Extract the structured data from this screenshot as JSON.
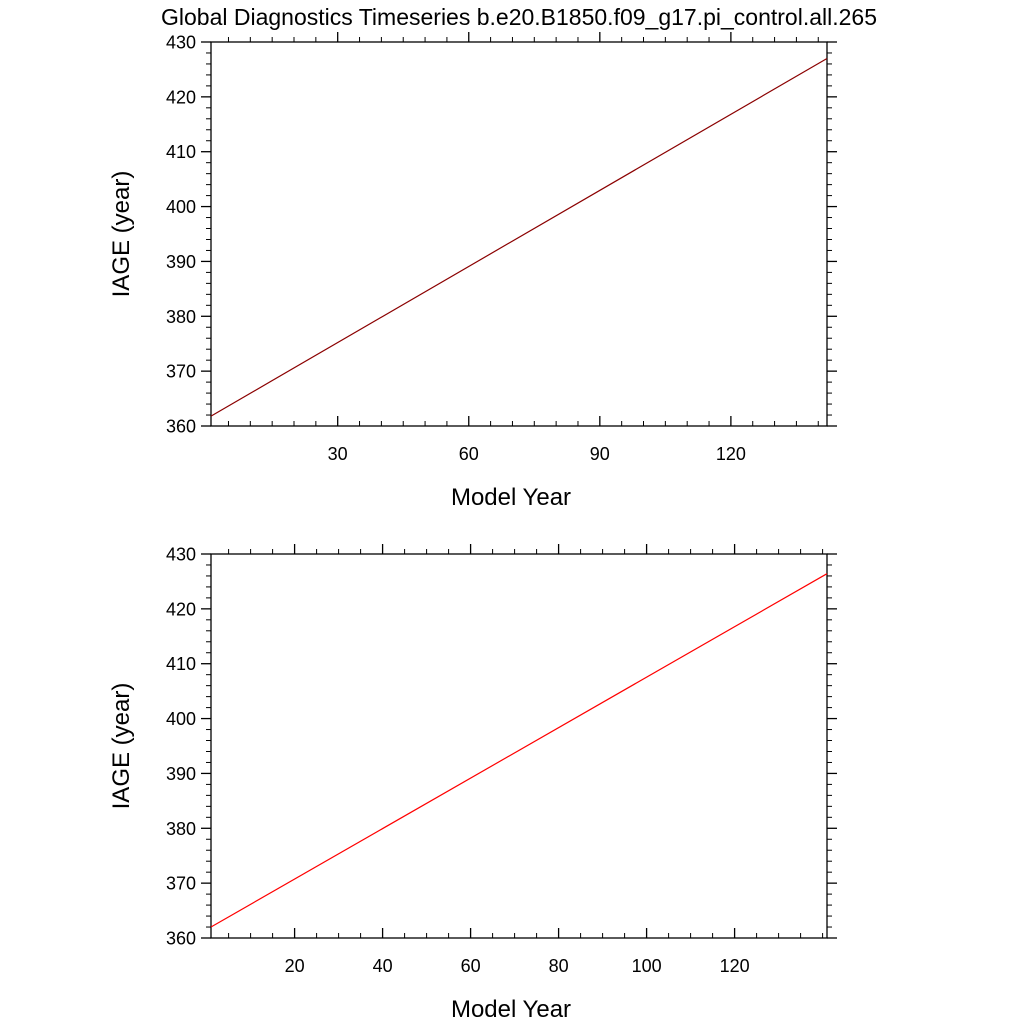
{
  "title": "Global Diagnostics Timeseries b.e20.B1850.f09_g17.pi_control.all.265",
  "colors": {
    "top_line": "#8B0000",
    "bottom_line": "#FF0000",
    "frame": "#000000"
  },
  "chart_data": [
    {
      "type": "line",
      "xlabel": "Model Year",
      "ylabel": "IAGE (year)",
      "xlim": [
        1,
        142
      ],
      "ylim": [
        360,
        430
      ],
      "xticks": [
        30,
        60,
        90,
        120
      ],
      "yticks": [
        360,
        370,
        380,
        390,
        400,
        410,
        420,
        430
      ],
      "x_minor_step": 5,
      "y_minor_step": 2,
      "grid": false,
      "series": [
        {
          "x": [
            1,
            142
          ],
          "y": [
            361.8,
            427.0
          ]
        }
      ]
    },
    {
      "type": "line",
      "xlabel": "Model Year",
      "ylabel": "IAGE (year)",
      "xlim": [
        1,
        141
      ],
      "ylim": [
        360,
        430
      ],
      "xticks": [
        20,
        40,
        60,
        80,
        100,
        120
      ],
      "yticks": [
        360,
        370,
        380,
        390,
        400,
        410,
        420,
        430
      ],
      "x_minor_step": 5,
      "y_minor_step": 2,
      "grid": false,
      "series": [
        {
          "x": [
            1,
            141
          ],
          "y": [
            362.0,
            426.4
          ]
        }
      ]
    }
  ]
}
